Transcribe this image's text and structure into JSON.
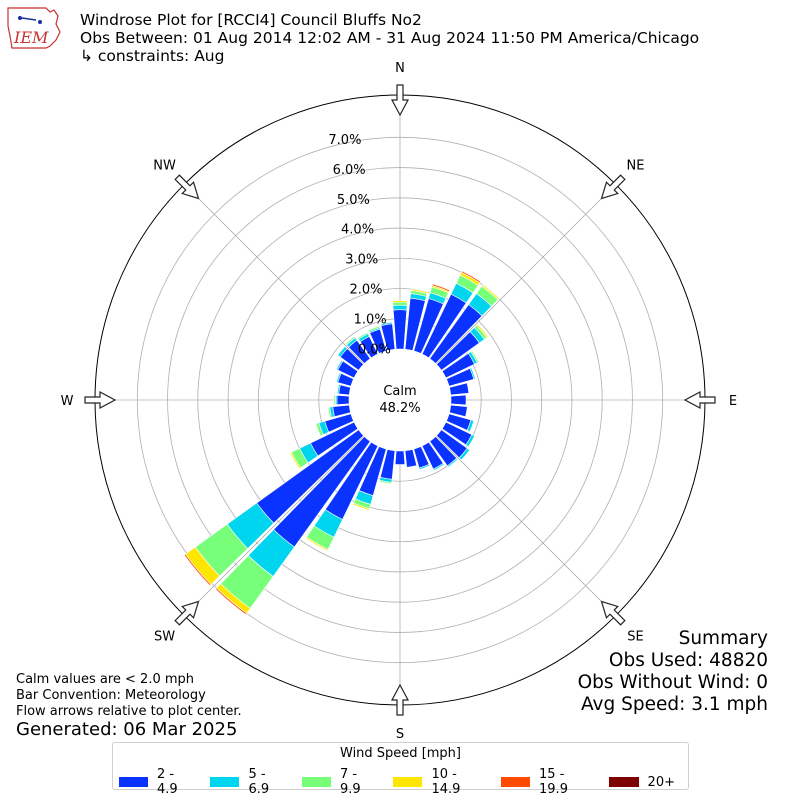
{
  "header": {
    "logo_text": "IEM",
    "title_line1": "Windrose Plot for [RCCI4] Council Bluffs No2",
    "title_line2": "Obs Between: 01 Aug 2014 12:02 AM - 31 Aug 2024 11:50 PM America/Chicago",
    "title_line3": "↳ constraints: Aug"
  },
  "summary": {
    "heading": "Summary",
    "obs_used": "Obs Used: 48820",
    "obs_without_wind": "Obs Without Wind: 0",
    "avg_speed": "Avg Speed: 3.1 mph"
  },
  "notes": {
    "calm": "Calm values are < 2.0 mph",
    "convention": "Bar Convention: Meteorology",
    "flow": "Flow arrows relative to plot center.",
    "generated": "Generated: 06 Mar 2025"
  },
  "chart_data": {
    "type": "windrose",
    "title": "Windrose Plot for [RCCI4] Council Bluffs No2",
    "calm_label": "Calm",
    "calm_percent": "48.2%",
    "radial_ticks": [
      "0.0%",
      "1.0%",
      "2.0%",
      "3.0%",
      "4.0%",
      "5.0%",
      "6.0%",
      "7.0%"
    ],
    "radial_max": 8.4,
    "compass_labels": [
      "N",
      "NE",
      "E",
      "SE",
      "S",
      "SW",
      "W",
      "NW"
    ],
    "legend_title": "Wind Speed [mph]",
    "speed_bins": [
      "2 - 4.9",
      "5 - 6.9",
      "7 - 9.9",
      "10 - 14.9",
      "15 - 19.9",
      "20+"
    ],
    "colors": [
      "#0a33ff",
      "#00d5ef",
      "#78ff7a",
      "#ffe600",
      "#ff4a00",
      "#7f0000"
    ],
    "directions_deg": [
      0,
      10,
      20,
      30,
      40,
      50,
      60,
      70,
      80,
      90,
      100,
      110,
      120,
      130,
      140,
      150,
      160,
      170,
      180,
      190,
      200,
      210,
      220,
      230,
      240,
      250,
      260,
      270,
      280,
      290,
      300,
      310,
      320,
      330,
      340,
      350
    ],
    "series": [
      {
        "name": "2 - 4.9",
        "values": [
          1.3,
          1.7,
          1.8,
          2.2,
          2.2,
          1.55,
          1.05,
          0.85,
          0.6,
          0.5,
          0.55,
          0.75,
          0.95,
          1.05,
          1.0,
          0.85,
          0.65,
          0.55,
          0.45,
          0.95,
          1.6,
          2.7,
          4.3,
          4.15,
          1.6,
          0.9,
          0.55,
          0.4,
          0.35,
          0.45,
          0.6,
          0.75,
          0.75,
          0.65,
          0.75,
          0.85
        ]
      },
      {
        "name": "5 - 6.9",
        "values": [
          0.15,
          0.15,
          0.2,
          0.4,
          0.45,
          0.2,
          0.1,
          0.05,
          0.0,
          0.0,
          0.0,
          0.1,
          0.1,
          0.1,
          0.05,
          0.05,
          0.05,
          0.0,
          0.0,
          0.1,
          0.3,
          0.65,
          1.2,
          1.2,
          0.4,
          0.2,
          0.1,
          0.05,
          0.05,
          0.05,
          0.05,
          0.1,
          0.1,
          0.1,
          0.05,
          0.05
        ]
      },
      {
        "name": "7 - 9.9",
        "values": [
          0.1,
          0.1,
          0.2,
          0.3,
          0.3,
          0.1,
          0.05,
          0.0,
          0.0,
          0.0,
          0.0,
          0.0,
          0.0,
          0.0,
          0.0,
          0.0,
          0.0,
          0.0,
          0.0,
          0.05,
          0.15,
          0.45,
          1.3,
          1.3,
          0.3,
          0.1,
          0.05,
          0.05,
          0.0,
          0.0,
          0.0,
          0.0,
          0.05,
          0.05,
          0.05,
          0.0
        ]
      },
      {
        "name": "10 - 14.9",
        "values": [
          0.05,
          0.05,
          0.05,
          0.1,
          0.05,
          0.05,
          0.0,
          0.0,
          0.0,
          0.0,
          0.0,
          0.0,
          0.0,
          0.0,
          0.0,
          0.0,
          0.0,
          0.0,
          0.0,
          0.0,
          0.05,
          0.05,
          0.2,
          0.4,
          0.05,
          0.0,
          0.0,
          0.0,
          0.0,
          0.0,
          0.0,
          0.0,
          0.0,
          0.0,
          0.0,
          0.0
        ]
      },
      {
        "name": "15 - 19.9",
        "values": [
          0.0,
          0.0,
          0.05,
          0.05,
          0.0,
          0.0,
          0.0,
          0.0,
          0.0,
          0.0,
          0.0,
          0.0,
          0.0,
          0.0,
          0.0,
          0.0,
          0.0,
          0.0,
          0.0,
          0.0,
          0.0,
          0.02,
          0.05,
          0.05,
          0.0,
          0.0,
          0.0,
          0.0,
          0.0,
          0.0,
          0.0,
          0.0,
          0.0,
          0.0,
          0.0,
          0.0
        ]
      },
      {
        "name": "20+",
        "values": [
          0,
          0,
          0,
          0,
          0,
          0,
          0,
          0,
          0,
          0,
          0,
          0,
          0,
          0,
          0,
          0,
          0,
          0,
          0,
          0,
          0,
          0,
          0,
          0,
          0,
          0,
          0,
          0,
          0,
          0,
          0,
          0,
          0,
          0,
          0,
          0
        ]
      }
    ]
  }
}
